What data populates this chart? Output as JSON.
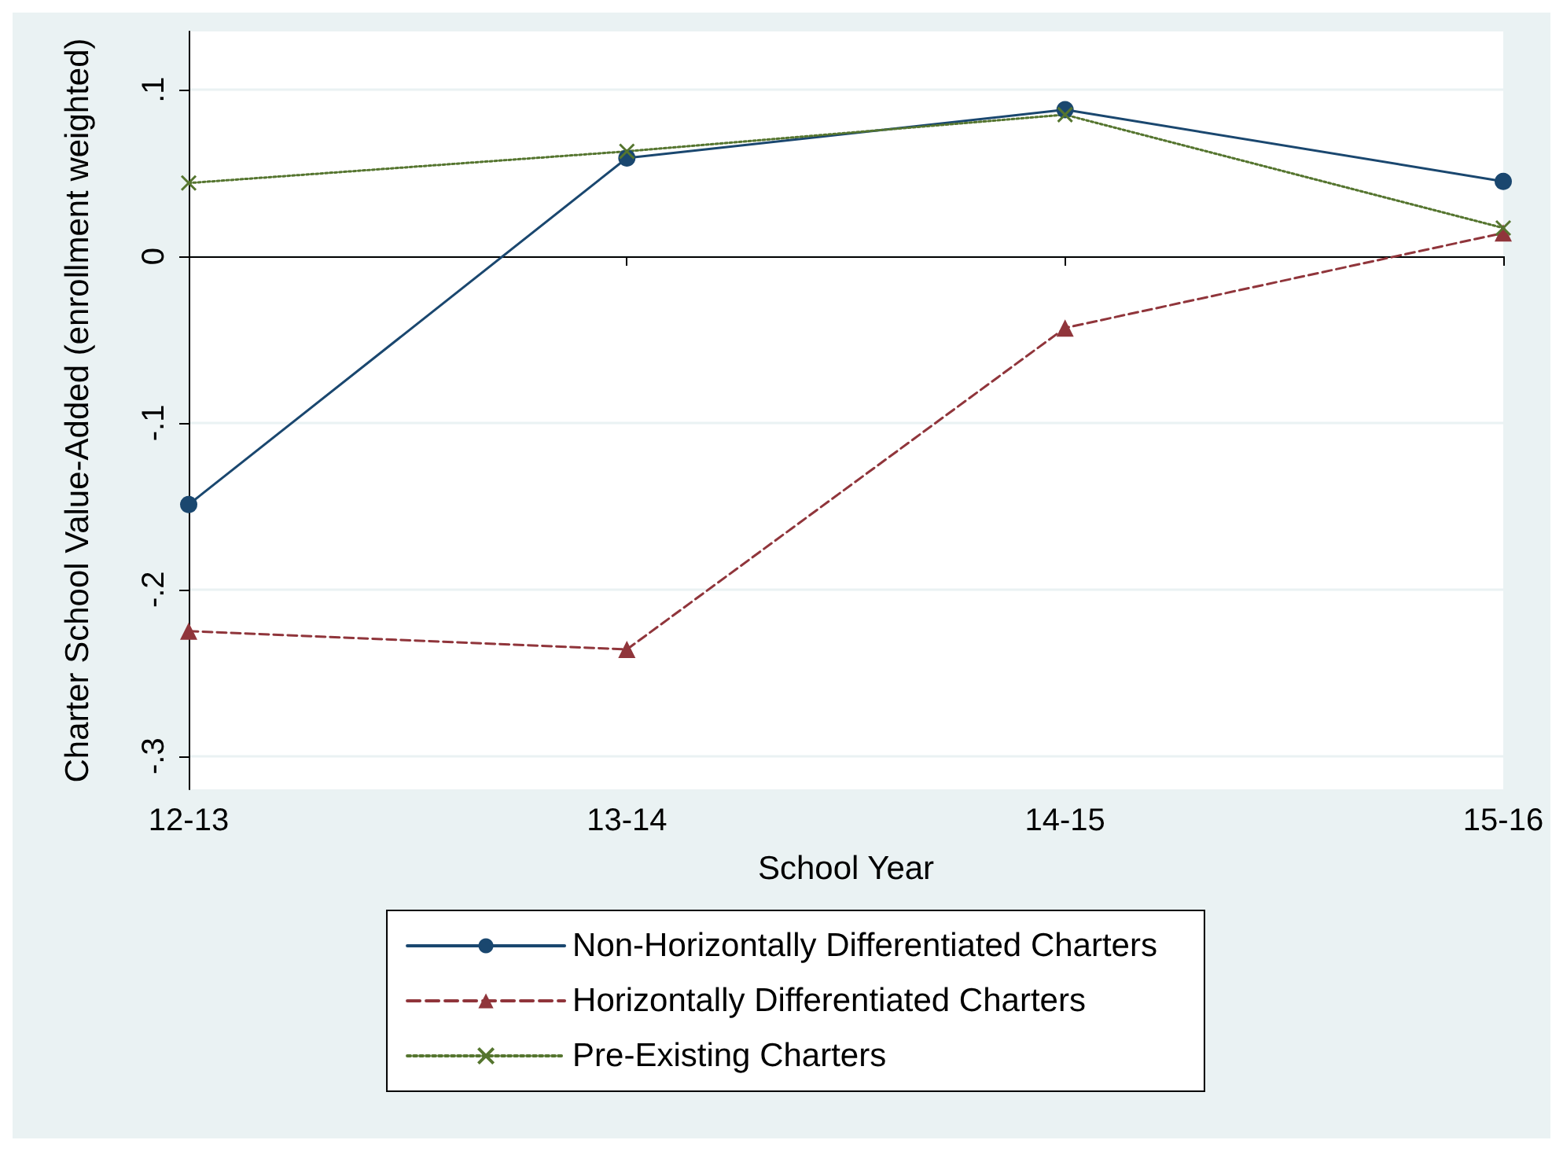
{
  "chart_data": {
    "type": "line",
    "xlabel": "School Year",
    "ylabel": "Charter School Value-Added (enrollment weighted)",
    "categories": [
      "12-13",
      "13-14",
      "14-15",
      "15-16"
    ],
    "series": [
      {
        "name": "Non-Horizontally Differentiated Charters",
        "color": "#1a476f",
        "values": [
          -0.149,
          0.059,
          0.088,
          0.045
        ],
        "marker": "circle",
        "line_style": "solid"
      },
      {
        "name": "Horizontally Differentiated Charters",
        "color": "#90353b",
        "values": [
          -0.225,
          -0.236,
          -0.043,
          0.014
        ],
        "marker": "triangle",
        "line_style": "dashed"
      },
      {
        "name": "Pre-Existing Charters",
        "color": "#55752f",
        "values": [
          0.044,
          0.063,
          0.085,
          0.017
        ],
        "marker": "cross",
        "line_style": "dotted"
      }
    ],
    "ylim": [
      -0.32,
      0.135
    ],
    "yticks": [
      {
        "value": -0.3,
        "label": "-.3"
      },
      {
        "value": -0.2,
        "label": "-.2"
      },
      {
        "value": -0.1,
        "label": "-.1"
      },
      0,
      {
        "value": 0.1,
        "label": ".1"
      }
    ],
    "grid": "y",
    "legend": "bottom"
  }
}
